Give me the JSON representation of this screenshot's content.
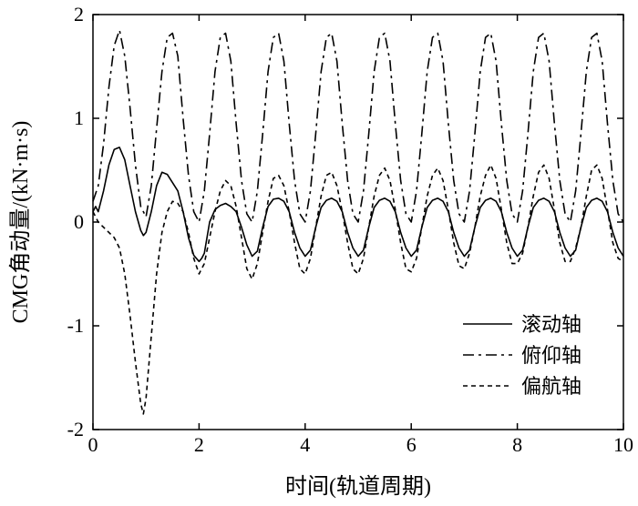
{
  "chart_data": {
    "type": "line",
    "title": "",
    "xlabel": "时间(轨道周期)",
    "ylabel": "CMG角动量/(kN·m·s)",
    "xlim": [
      0,
      10
    ],
    "ylim": [
      -2,
      2
    ],
    "xticks": [
      0,
      2,
      4,
      6,
      8,
      10
    ],
    "yticks": [
      -2,
      -1,
      0,
      1,
      2
    ],
    "grid": false,
    "legend_position": "bottom-right",
    "series": [
      {
        "name": "滚动轴",
        "style": "solid",
        "color": "#000000",
        "x": [
          0,
          0.05,
          0.1,
          0.2,
          0.3,
          0.4,
          0.5,
          0.6,
          0.7,
          0.8,
          0.9,
          0.95,
          1.0,
          1.1,
          1.2,
          1.3,
          1.4,
          1.5,
          1.6,
          1.7,
          1.8,
          1.9,
          2.0,
          2.05,
          2.1,
          2.2,
          2.3,
          2.4,
          2.5,
          2.6,
          2.7,
          2.8,
          2.9,
          3.0,
          3.1,
          3.2,
          3.3,
          3.4,
          3.5,
          3.6,
          3.7,
          3.8,
          3.9,
          4.0,
          4.1,
          4.2,
          4.3,
          4.4,
          4.5,
          4.6,
          4.7,
          4.8,
          4.9,
          5.0,
          5.1,
          5.2,
          5.3,
          5.4,
          5.5,
          5.6,
          5.7,
          5.8,
          5.9,
          6.0,
          6.1,
          6.2,
          6.3,
          6.4,
          6.5,
          6.6,
          6.7,
          6.8,
          6.9,
          7.0,
          7.1,
          7.2,
          7.3,
          7.4,
          7.5,
          7.6,
          7.7,
          7.8,
          7.9,
          8.0,
          8.1,
          8.2,
          8.3,
          8.4,
          8.5,
          8.6,
          8.7,
          8.8,
          8.9,
          9.0,
          9.1,
          9.2,
          9.3,
          9.4,
          9.5,
          9.6,
          9.7,
          9.8,
          9.9,
          10.0
        ],
        "values": [
          0.1,
          0.15,
          0.1,
          0.3,
          0.55,
          0.7,
          0.72,
          0.6,
          0.35,
          0.1,
          -0.08,
          -0.13,
          -0.1,
          0.1,
          0.35,
          0.48,
          0.46,
          0.38,
          0.3,
          0.1,
          -0.15,
          -0.32,
          -0.38,
          -0.35,
          -0.3,
          0.0,
          0.12,
          0.16,
          0.18,
          0.15,
          0.1,
          -0.05,
          -0.22,
          -0.33,
          -0.28,
          -0.05,
          0.15,
          0.22,
          0.23,
          0.2,
          0.1,
          -0.1,
          -0.25,
          -0.33,
          -0.27,
          -0.05,
          0.14,
          0.21,
          0.23,
          0.2,
          0.1,
          -0.1,
          -0.25,
          -0.33,
          -0.27,
          -0.05,
          0.14,
          0.21,
          0.23,
          0.2,
          0.1,
          -0.1,
          -0.25,
          -0.33,
          -0.27,
          -0.05,
          0.14,
          0.21,
          0.23,
          0.2,
          0.1,
          -0.1,
          -0.25,
          -0.33,
          -0.27,
          -0.05,
          0.14,
          0.21,
          0.23,
          0.2,
          0.1,
          -0.1,
          -0.25,
          -0.33,
          -0.27,
          -0.05,
          0.14,
          0.21,
          0.23,
          0.2,
          0.1,
          -0.1,
          -0.25,
          -0.33,
          -0.27,
          -0.05,
          0.14,
          0.21,
          0.23,
          0.2,
          0.1,
          -0.1,
          -0.25,
          -0.33
        ]
      },
      {
        "name": "俯仰轴",
        "style": "dashdot",
        "color": "#000000",
        "x": [
          0,
          0.1,
          0.2,
          0.3,
          0.4,
          0.5,
          0.6,
          0.7,
          0.8,
          0.9,
          1.0,
          1.1,
          1.2,
          1.3,
          1.4,
          1.5,
          1.6,
          1.7,
          1.8,
          1.9,
          2.0,
          2.1,
          2.2,
          2.3,
          2.4,
          2.5,
          2.6,
          2.7,
          2.8,
          2.9,
          3.0,
          3.1,
          3.2,
          3.3,
          3.4,
          3.5,
          3.6,
          3.7,
          3.8,
          3.9,
          4.0,
          4.1,
          4.2,
          4.3,
          4.4,
          4.5,
          4.6,
          4.7,
          4.8,
          4.9,
          5.0,
          5.1,
          5.2,
          5.3,
          5.4,
          5.5,
          5.6,
          5.7,
          5.8,
          5.9,
          6.0,
          6.1,
          6.2,
          6.3,
          6.4,
          6.5,
          6.6,
          6.7,
          6.8,
          6.9,
          7.0,
          7.1,
          7.2,
          7.3,
          7.4,
          7.5,
          7.6,
          7.7,
          7.8,
          7.9,
          8.0,
          8.1,
          8.2,
          8.3,
          8.4,
          8.5,
          8.6,
          8.7,
          8.8,
          8.9,
          9.0,
          9.1,
          9.2,
          9.3,
          9.4,
          9.5,
          9.6,
          9.7,
          9.8,
          9.9,
          10.0
        ],
        "values": [
          0.2,
          0.35,
          0.75,
          1.3,
          1.7,
          1.85,
          1.6,
          1.1,
          0.55,
          0.15,
          0.05,
          0.35,
          0.9,
          1.45,
          1.78,
          1.82,
          1.6,
          1.0,
          0.45,
          0.1,
          0.0,
          0.3,
          0.85,
          1.45,
          1.78,
          1.82,
          1.55,
          0.95,
          0.4,
          0.08,
          0.0,
          0.3,
          0.85,
          1.45,
          1.78,
          1.82,
          1.55,
          0.95,
          0.4,
          0.08,
          0.0,
          0.3,
          0.85,
          1.45,
          1.78,
          1.82,
          1.55,
          0.95,
          0.4,
          0.08,
          0.0,
          0.3,
          0.85,
          1.45,
          1.78,
          1.82,
          1.55,
          0.95,
          0.4,
          0.08,
          0.0,
          0.3,
          0.85,
          1.45,
          1.78,
          1.82,
          1.55,
          0.95,
          0.4,
          0.08,
          0.0,
          0.3,
          0.85,
          1.45,
          1.78,
          1.82,
          1.55,
          0.95,
          0.4,
          0.08,
          0.0,
          0.3,
          0.85,
          1.45,
          1.78,
          1.82,
          1.55,
          0.95,
          0.4,
          0.08,
          0.0,
          0.3,
          0.85,
          1.45,
          1.78,
          1.82,
          1.55,
          0.95,
          0.4,
          0.08,
          0.0
        ]
      },
      {
        "name": "偏航轴",
        "style": "dashed",
        "color": "#000000",
        "x": [
          0,
          0.1,
          0.2,
          0.3,
          0.4,
          0.5,
          0.6,
          0.7,
          0.8,
          0.9,
          0.95,
          1.0,
          1.1,
          1.2,
          1.3,
          1.4,
          1.5,
          1.6,
          1.7,
          1.8,
          1.9,
          2.0,
          2.1,
          2.2,
          2.3,
          2.4,
          2.5,
          2.6,
          2.7,
          2.8,
          2.9,
          3.0,
          3.1,
          3.2,
          3.3,
          3.4,
          3.5,
          3.6,
          3.7,
          3.8,
          3.9,
          4.0,
          4.1,
          4.2,
          4.3,
          4.4,
          4.5,
          4.6,
          4.7,
          4.8,
          4.9,
          5.0,
          5.1,
          5.2,
          5.3,
          5.4,
          5.5,
          5.6,
          5.7,
          5.8,
          5.9,
          6.0,
          6.1,
          6.2,
          6.3,
          6.4,
          6.5,
          6.6,
          6.7,
          6.8,
          6.9,
          7.0,
          7.1,
          7.2,
          7.3,
          7.4,
          7.5,
          7.6,
          7.7,
          7.8,
          7.9,
          8.0,
          8.1,
          8.2,
          8.3,
          8.4,
          8.5,
          8.6,
          8.7,
          8.8,
          8.9,
          9.0,
          9.1,
          9.2,
          9.3,
          9.4,
          9.5,
          9.6,
          9.7,
          9.8,
          9.9,
          10.0
        ],
        "values": [
          0.1,
          0.0,
          -0.05,
          -0.1,
          -0.15,
          -0.25,
          -0.5,
          -0.9,
          -1.35,
          -1.75,
          -1.85,
          -1.7,
          -1.1,
          -0.5,
          -0.1,
          0.1,
          0.2,
          0.18,
          0.1,
          -0.1,
          -0.35,
          -0.5,
          -0.4,
          -0.15,
          0.1,
          0.3,
          0.4,
          0.35,
          0.15,
          -0.15,
          -0.45,
          -0.55,
          -0.4,
          -0.1,
          0.2,
          0.42,
          0.45,
          0.35,
          0.1,
          -0.2,
          -0.45,
          -0.5,
          -0.35,
          -0.05,
          0.25,
          0.45,
          0.48,
          0.35,
          0.1,
          -0.2,
          -0.45,
          -0.5,
          -0.35,
          -0.05,
          0.25,
          0.45,
          0.52,
          0.4,
          0.12,
          -0.2,
          -0.45,
          -0.48,
          -0.35,
          -0.05,
          0.25,
          0.45,
          0.52,
          0.4,
          0.12,
          -0.2,
          -0.42,
          -0.45,
          -0.3,
          -0.05,
          0.25,
          0.45,
          0.55,
          0.42,
          0.12,
          -0.2,
          -0.4,
          -0.4,
          -0.3,
          -0.05,
          0.25,
          0.48,
          0.55,
          0.42,
          0.12,
          -0.2,
          -0.38,
          -0.38,
          -0.25,
          -0.05,
          0.25,
          0.5,
          0.55,
          0.42,
          0.12,
          -0.2,
          -0.35,
          -0.38
        ]
      }
    ]
  }
}
